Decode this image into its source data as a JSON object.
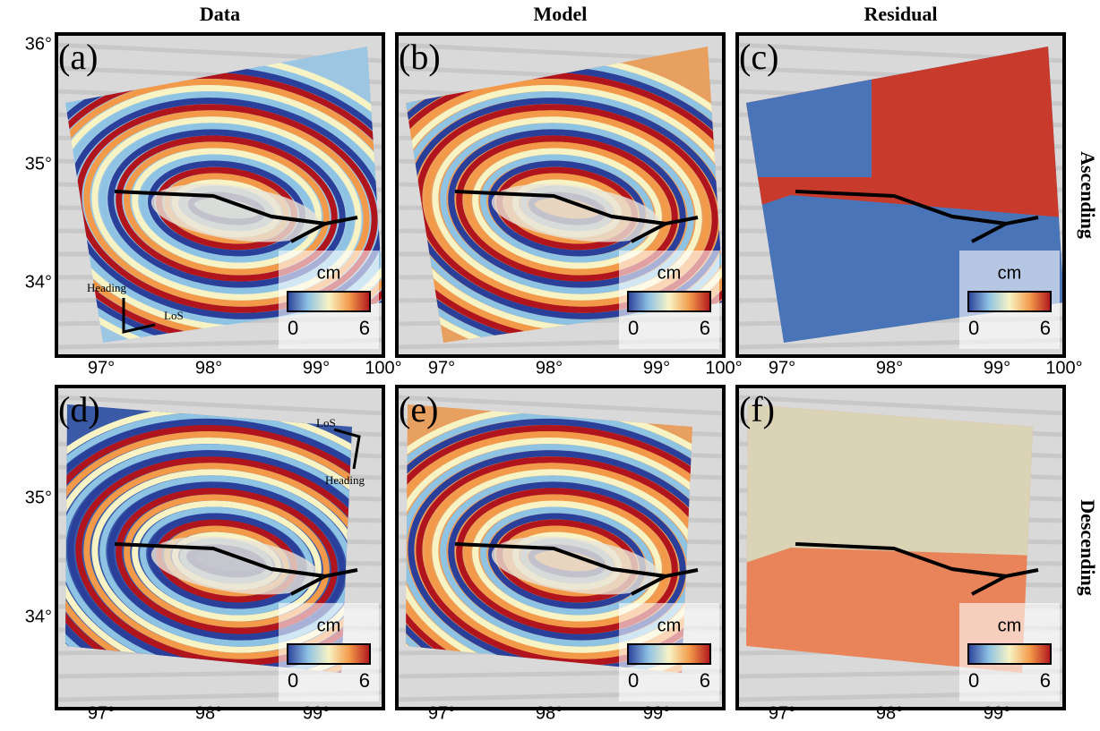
{
  "columns": [
    "Data",
    "Model",
    "Residual"
  ],
  "rows": [
    "Ascending",
    "Descending"
  ],
  "panels": [
    {
      "label": "(a)",
      "colorbar": {
        "unit": "cm",
        "min": 0,
        "max": 6
      },
      "x_ticks": [
        "97°",
        "98°",
        "99°",
        "100°"
      ],
      "arrows": {
        "los": "LoS",
        "heading": "Heading"
      }
    },
    {
      "label": "(b)",
      "colorbar": {
        "unit": "cm",
        "min": 0,
        "max": 6
      },
      "x_ticks": [
        "97°",
        "98°",
        "99°",
        "100°"
      ]
    },
    {
      "label": "(c)",
      "colorbar": {
        "unit": "cm",
        "min": 0,
        "max": 6
      },
      "x_ticks": [
        "97°",
        "98°",
        "99°",
        "100°"
      ]
    },
    {
      "label": "(d)",
      "colorbar": {
        "unit": "cm",
        "min": 0,
        "max": 6
      },
      "x_ticks": [
        "97°",
        "98°",
        "99°"
      ],
      "arrows": {
        "los": "LoS",
        "heading": "Heading"
      }
    },
    {
      "label": "(e)",
      "colorbar": {
        "unit": "cm",
        "min": 0,
        "max": 6
      },
      "x_ticks": [
        "97°",
        "98°",
        "99°"
      ]
    },
    {
      "label": "(f)",
      "colorbar": {
        "unit": "cm",
        "min": 0,
        "max": 6
      },
      "x_ticks": [
        "97°",
        "98°",
        "99°"
      ]
    }
  ],
  "y_ticks": {
    "top": [
      "36°",
      "35°",
      "34°"
    ],
    "bottom": [
      "35°",
      "34°"
    ]
  }
}
